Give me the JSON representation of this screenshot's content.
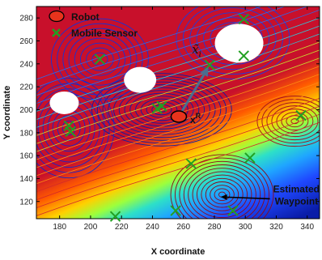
{
  "chart_data": {
    "type": "scatter",
    "xlabel": "X coordinate",
    "ylabel": "Y coordinate",
    "xlim": [
      165,
      348
    ],
    "ylim": [
      105,
      290
    ],
    "x_ticks": [
      180,
      200,
      220,
      240,
      260,
      280,
      300,
      320,
      340
    ],
    "y_ticks": [
      120,
      140,
      160,
      180,
      200,
      220,
      240,
      260,
      280
    ],
    "grid": false,
    "legend_position": "top-left",
    "legend": [
      {
        "label": "Robot",
        "marker": "circle",
        "color": "#e8331c"
      },
      {
        "label": "Mobile Sensor",
        "marker": "x",
        "color": "#22a022"
      }
    ],
    "robot": {
      "x": 257,
      "y": 194,
      "label": "x",
      "label_sup": "R"
    },
    "sensors": [
      {
        "x": 187,
        "y": 181
      },
      {
        "x": 186,
        "y": 186
      },
      {
        "x": 206,
        "y": 244
      },
      {
        "x": 243,
        "y": 201
      },
      {
        "x": 246,
        "y": 203
      },
      {
        "x": 299,
        "y": 279
      },
      {
        "x": 299,
        "y": 247
      },
      {
        "x": 277,
        "y": 239
      },
      {
        "x": 336,
        "y": 195
      },
      {
        "x": 303,
        "y": 158
      },
      {
        "x": 265,
        "y": 153
      },
      {
        "x": 216,
        "y": 107
      },
      {
        "x": 255,
        "y": 112
      },
      {
        "x": 292,
        "y": 112
      }
    ],
    "estimate_point": {
      "x": 277,
      "y": 239,
      "label": "x̃",
      "label_sub": "i"
    },
    "annotation": {
      "lines": [
        "Estimated",
        "Waypoint"
      ],
      "text_at": {
        "x": 318,
        "y": 128
      },
      "arrow_to": {
        "x": 284,
        "y": 124
      }
    },
    "colors": {
      "arrow": "#4a6e90",
      "robot_fill": "#e8331c",
      "sensor": "#22a022"
    }
  }
}
